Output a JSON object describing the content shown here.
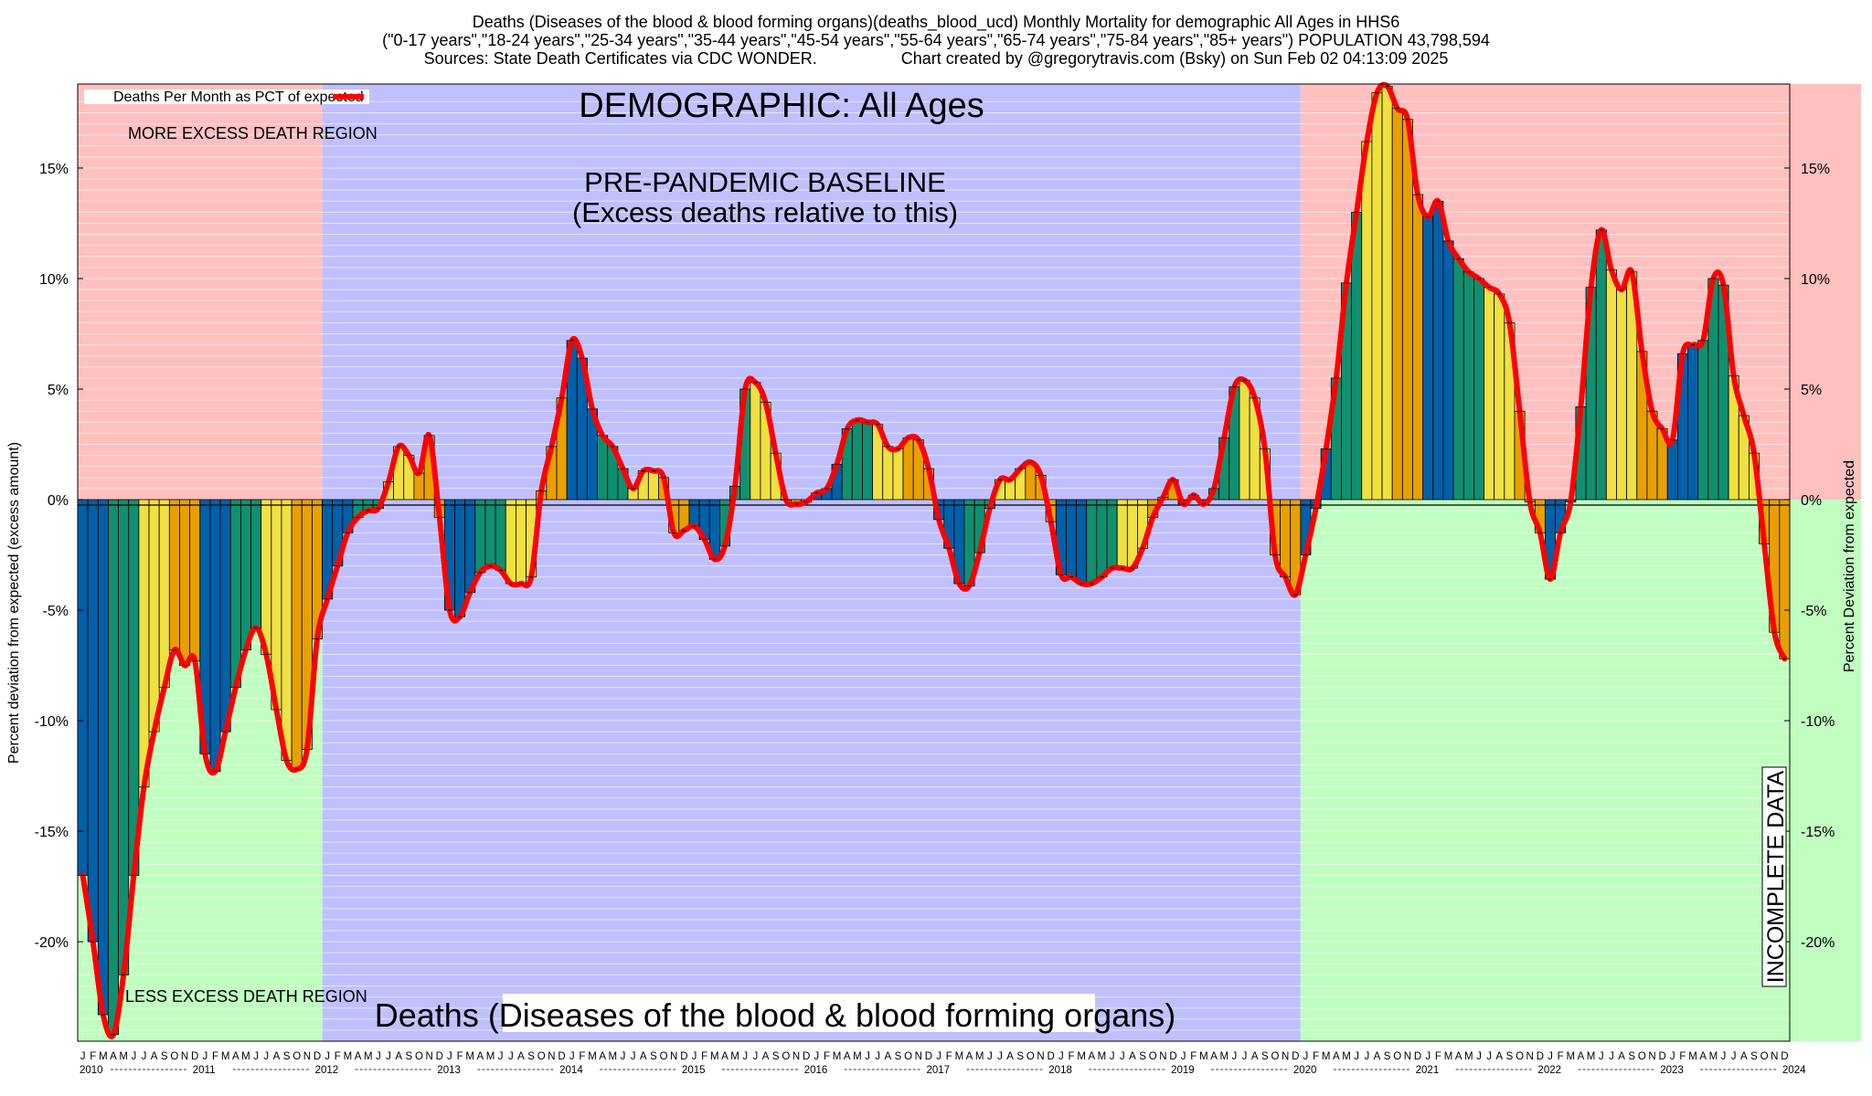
{
  "title": {
    "line1": "Deaths (Diseases of the blood & blood forming organs)(deaths_blood_ucd) Monthly Mortality for demographic All Ages in HHS6",
    "line2": "(\"0-17 years\",\"18-24 years\",\"25-34 years\",\"35-44 years\",\"45-54 years\",\"55-64 years\",\"65-74 years\",\"75-84 years\",\"85+ years\") POPULATION 43,798,594",
    "line3_left": "Sources: State Death Certificates via CDC WONDER.",
    "line3_right": "Chart created by @gregorytravis.com (Bsky) on Sun Feb 02 04:13:09 2025"
  },
  "annotations": {
    "demographic": "DEMOGRAPHIC: All Ages",
    "baseline_line1": "PRE-PANDEMIC BASELINE",
    "baseline_line2": "(Excess deaths relative to this)",
    "more_excess": "MORE EXCESS DEATH REGION",
    "less_excess": "LESS EXCESS DEATH REGION",
    "bottom_label": "Deaths (Diseases of the blood & blood forming organs)",
    "incomplete": "INCOMPLETE DATA"
  },
  "legend": {
    "label": "Deaths Per Month as PCT of expected"
  },
  "axes": {
    "ylabel_left": "Percent deviation from expected (excess amount)",
    "ylabel_right": "Percent Deviation from expected"
  },
  "colors": {
    "excess_region": "#ffc0c0",
    "deficit_region": "#c0ffc0",
    "baseline_region": "#c0c0ff",
    "incomplete_hatch": "#c08080",
    "line": "#ff0000",
    "bar_cycle": [
      "#0060a8",
      "#109070",
      "#f0e040",
      "#e8a000"
    ]
  },
  "chart_data": {
    "type": "bar",
    "title": "Deaths (Diseases of the blood & blood forming organs)(deaths_blood_ucd) Monthly Mortality for demographic All Ages in HHS6",
    "ylabel": "Percent deviation from expected (excess amount)",
    "ylim": [
      -24.5,
      18.8
    ],
    "yticks": [
      -20,
      -15,
      -10,
      -5,
      0,
      5,
      10,
      15
    ],
    "ytick_labels": [
      "-20%",
      "-15%",
      "-10%",
      "-5%",
      "0%",
      "5%",
      "10%",
      "15%"
    ],
    "grid": true,
    "legend_position": "top-left",
    "month_letters": [
      "J",
      "F",
      "M",
      "A",
      "M",
      "J",
      "J",
      "A",
      "S",
      "O",
      "N",
      "D"
    ],
    "years": [
      "2010",
      "2011",
      "2012",
      "2013",
      "2014",
      "2015",
      "2016",
      "2017",
      "2018",
      "2019",
      "2020",
      "2021",
      "2022",
      "2023",
      "2024"
    ],
    "start": "2010-01",
    "baseline_period": [
      "2012-01",
      "2019-12"
    ],
    "incomplete_from": "2024-08",
    "series": [
      {
        "name": "Deaths Per Month as PCT of expected",
        "values": [
          -17.0,
          -20.0,
          -23.3,
          -24.2,
          -21.5,
          -17.0,
          -13.0,
          -10.5,
          -8.5,
          -6.8,
          -7.5,
          -7.3,
          -11.5,
          -12.3,
          -10.5,
          -8.5,
          -6.8,
          -5.8,
          -7.0,
          -9.5,
          -11.8,
          -12.2,
          -11.3,
          -6.3,
          -4.5,
          -3.0,
          -1.5,
          -0.8,
          -0.5,
          -0.4,
          0.8,
          2.4,
          2.0,
          1.2,
          2.9,
          -0.8,
          -5.0,
          -5.3,
          -4.2,
          -3.3,
          -3.0,
          -3.2,
          -3.8,
          -3.8,
          -3.5,
          0.4,
          2.4,
          4.6,
          7.2,
          6.4,
          4.1,
          2.9,
          2.4,
          1.4,
          0.5,
          1.3,
          1.3,
          1.0,
          -1.5,
          -1.4,
          -1.2,
          -1.8,
          -2.7,
          -2.1,
          0.6,
          5.0,
          5.3,
          4.4,
          2.1,
          0.0,
          -0.2,
          -0.1,
          0.3,
          0.5,
          1.6,
          3.2,
          3.6,
          3.5,
          3.4,
          2.4,
          2.3,
          2.8,
          2.7,
          1.4,
          -0.9,
          -2.2,
          -3.8,
          -3.9,
          -2.4,
          -0.4,
          0.9,
          0.9,
          1.4,
          1.7,
          1.1,
          -1.0,
          -3.4,
          -3.5,
          -3.8,
          -3.8,
          -3.5,
          -3.1,
          -3.1,
          -3.1,
          -2.2,
          -0.8,
          0.1,
          0.9,
          -0.2,
          0.2,
          -0.2,
          0.5,
          2.8,
          5.1,
          5.4,
          4.6,
          2.3,
          -2.5,
          -3.5,
          -4.3,
          -2.5,
          -0.4,
          2.3,
          5.5,
          9.8,
          13.0,
          16.2,
          18.4,
          18.7,
          17.7,
          17.2,
          13.8,
          12.8,
          13.5,
          11.7,
          10.9,
          10.3,
          10.0,
          9.6,
          9.3,
          8.0,
          4.0,
          -0.1,
          -1.5,
          -3.6,
          -1.5,
          -0.1,
          4.2,
          9.6,
          12.2,
          10.4,
          9.5,
          10.3,
          6.7,
          4.0,
          3.2,
          2.7,
          6.6,
          7.0,
          7.2,
          10.0,
          9.7,
          5.6,
          3.8,
          2.1,
          -2.0,
          -6.0,
          -7.2
        ]
      }
    ]
  }
}
